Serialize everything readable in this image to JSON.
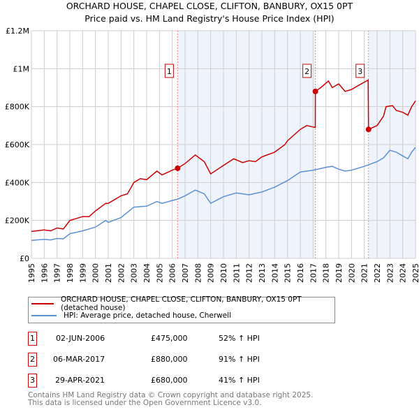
{
  "chart_data": {
    "type": "line",
    "title": "ORCHARD HOUSE, CHAPEL CLOSE, CLIFTON, BANBURY, OX15 0PT",
    "subtitle": "Price paid vs. HM Land Registry's House Price Index (HPI)",
    "xlim": [
      1995,
      2025
    ],
    "ylim": [
      0,
      1200000
    ],
    "y_ticks": [
      {
        "v": 0,
        "label": "£0"
      },
      {
        "v": 200000,
        "label": "£200K"
      },
      {
        "v": 400000,
        "label": "£400K"
      },
      {
        "v": 600000,
        "label": "£600K"
      },
      {
        "v": 800000,
        "label": "£800K"
      },
      {
        "v": 1000000,
        "label": "£1M"
      },
      {
        "v": 1200000,
        "label": "£1.2M"
      }
    ],
    "x_ticks": [
      "1995",
      "1996",
      "1997",
      "1998",
      "1999",
      "2000",
      "2001",
      "2002",
      "2003",
      "2004",
      "2005",
      "2006",
      "2007",
      "2008",
      "2009",
      "2010",
      "2011",
      "2012",
      "2013",
      "2014",
      "2015",
      "2016",
      "2017",
      "2018",
      "2019",
      "2020",
      "2021",
      "2022",
      "2023",
      "2024",
      "2025"
    ],
    "grid": true,
    "series": [
      {
        "name": "ORCHARD HOUSE, CHAPEL CLOSE, CLIFTON, BANBURY, OX15 0PT (detached house)",
        "color": "#cc0000",
        "x": [
          1995,
          1996,
          1996.5,
          1997,
          1997.5,
          1998,
          1999,
          1999.5,
          2000,
          2000.8,
          2001,
          2002,
          2002.5,
          2003,
          2003.5,
          2004,
          2004.8,
          2005.2,
          2006,
          2006.42,
          2007,
          2007.8,
          2008.5,
          2009,
          2010,
          2010.8,
          2011.5,
          2012,
          2012.5,
          2013,
          2014,
          2014.8,
          2015,
          2016,
          2016.5,
          2017.17,
          2017.18,
          2017.6,
          2018.2,
          2018.5,
          2019,
          2019.5,
          2020,
          2020.5,
          2021.3,
          2021.33,
          2022,
          2022.5,
          2022.7,
          2023.2,
          2023.5,
          2024,
          2024.4,
          2024.7,
          2025
        ],
        "values": [
          142000,
          150000,
          145000,
          160000,
          155000,
          200000,
          220000,
          220000,
          250000,
          290000,
          290000,
          330000,
          340000,
          400000,
          420000,
          415000,
          460000,
          440000,
          465000,
          475000,
          500000,
          545000,
          510000,
          445000,
          490000,
          525000,
          505000,
          515000,
          510000,
          535000,
          560000,
          600000,
          620000,
          680000,
          700000,
          690000,
          880000,
          900000,
          935000,
          900000,
          920000,
          880000,
          890000,
          910000,
          940000,
          680000,
          700000,
          750000,
          800000,
          805000,
          780000,
          770000,
          755000,
          800000,
          830000
        ]
      },
      {
        "name": "HPI: Average price, detached house, Cherwell",
        "color": "#5b8fd6",
        "x": [
          1995,
          1996,
          1996.5,
          1997,
          1997.5,
          1998,
          1999,
          2000,
          2000.8,
          2001,
          2002,
          2003,
          2004,
          2004.8,
          2005.2,
          2006,
          2006.42,
          2007,
          2007.8,
          2008.5,
          2009,
          2010,
          2011,
          2012,
          2013,
          2014,
          2015,
          2016,
          2017,
          2018,
          2018.5,
          2019,
          2019.5,
          2020,
          2021,
          2022,
          2022.5,
          2023,
          2023.5,
          2024,
          2024.4,
          2024.7,
          2025
        ],
        "values": [
          95000,
          100000,
          97000,
          105000,
          103000,
          130000,
          145000,
          165000,
          200000,
          190000,
          215000,
          270000,
          275000,
          300000,
          290000,
          305000,
          312000,
          330000,
          360000,
          340000,
          290000,
          325000,
          345000,
          335000,
          350000,
          375000,
          410000,
          455000,
          465000,
          480000,
          485000,
          470000,
          460000,
          465000,
          485000,
          510000,
          530000,
          570000,
          560000,
          540000,
          525000,
          560000,
          585000
        ]
      }
    ],
    "events": [
      {
        "id": "1",
        "x": 2006.42,
        "value": 475000
      },
      {
        "id": "2",
        "x": 2017.18,
        "value": 880000
      },
      {
        "id": "3",
        "x": 2021.33,
        "value": 680000
      }
    ]
  },
  "legend": {
    "property": "ORCHARD HOUSE, CHAPEL CLOSE, CLIFTON, BANBURY, OX15 0PT (detached house)",
    "hpi": "HPI: Average price, detached house, Cherwell"
  },
  "transactions": [
    {
      "id": "1",
      "date": "02-JUN-2006",
      "price": "£475,000",
      "hpi": "52% ↑ HPI"
    },
    {
      "id": "2",
      "date": "06-MAR-2017",
      "price": "£880,000",
      "hpi": "91% ↑ HPI"
    },
    {
      "id": "3",
      "date": "29-APR-2021",
      "price": "£680,000",
      "hpi": "41% ↑ HPI"
    }
  ],
  "footer": [
    "Contains HM Land Registry data © Crown copyright and database right 2025.",
    "This data is licensed under the Open Government Licence v3.0."
  ]
}
